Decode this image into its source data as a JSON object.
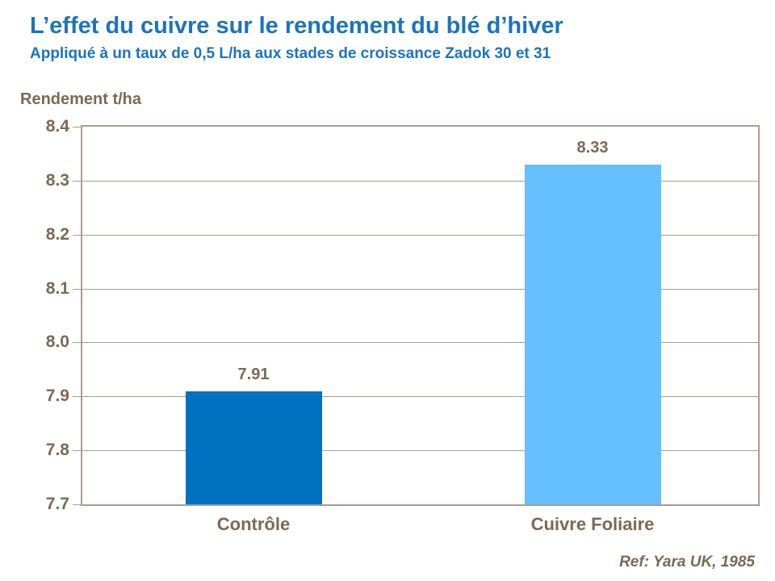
{
  "colors": {
    "title_blue": "#1B74BC",
    "text_brown": "#7A6A55",
    "axis_line": "#A89E90",
    "bar_colors": [
      "#0070C0",
      "#66BFFF"
    ]
  },
  "chart_data": {
    "type": "bar",
    "title": "L’effet du cuivre sur le rendement du blé d’hiver",
    "subtitle": "Appliqué à un taux de 0,5 L/ha aux stades de croissance Zadok 30 et 31",
    "ylabel": "Rendement t/ha",
    "xlabel": "",
    "categories": [
      "Contrôle",
      "Cuivre Foliaire"
    ],
    "values": [
      7.91,
      8.33
    ],
    "data_labels": [
      "7.91",
      "8.33"
    ],
    "ylim": [
      7.7,
      8.4
    ],
    "ytick_step": 0.1,
    "yticks": [
      "8.4",
      "8.3",
      "8.2",
      "8.1",
      "8.0",
      "7.9",
      "7.8",
      "7.7"
    ],
    "grid": true,
    "legend": false,
    "reference": "Ref: Yara UK, 1985"
  }
}
